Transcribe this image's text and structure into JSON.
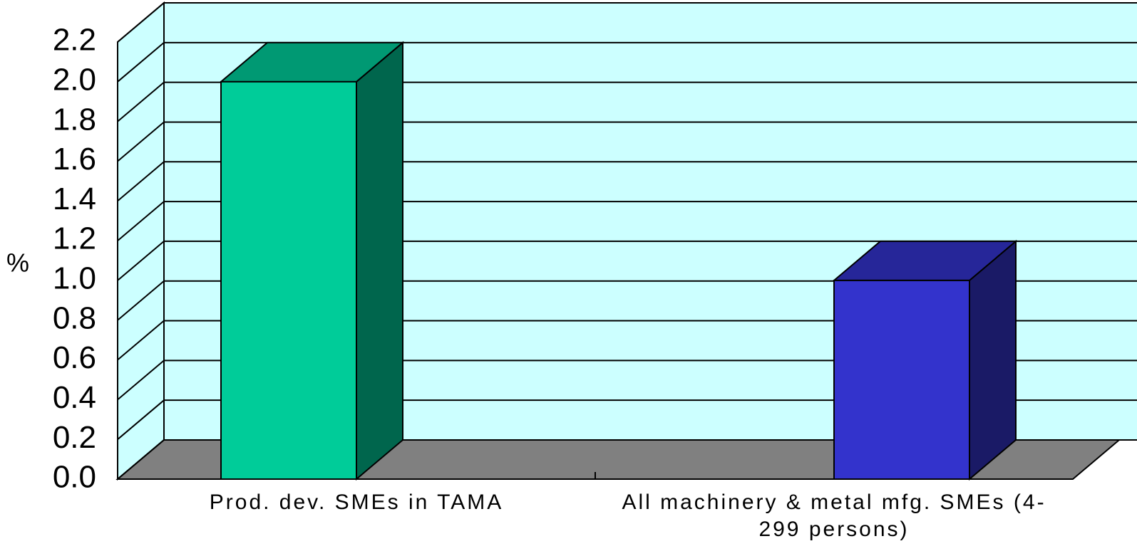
{
  "chart_data": {
    "type": "bar3d",
    "ylabel": "%",
    "categories": [
      "Prod. dev. SMEs in TAMA",
      "All machinery & metal mfg. SMEs (4-299 persons)"
    ],
    "values": [
      2.0,
      1.0
    ],
    "colors": [
      "#00cc99",
      "#3333cc"
    ],
    "ylim": [
      0,
      2.2
    ],
    "yticks": [
      {
        "value": 0,
        "label": "0.0"
      },
      0.2,
      0.4,
      0.6,
      0.8,
      {
        "value": 1,
        "label": "1.0"
      },
      1.2,
      1.4,
      1.6,
      1.8,
      {
        "value": 2,
        "label": "2.0"
      },
      2.2
    ],
    "grid": true
  }
}
